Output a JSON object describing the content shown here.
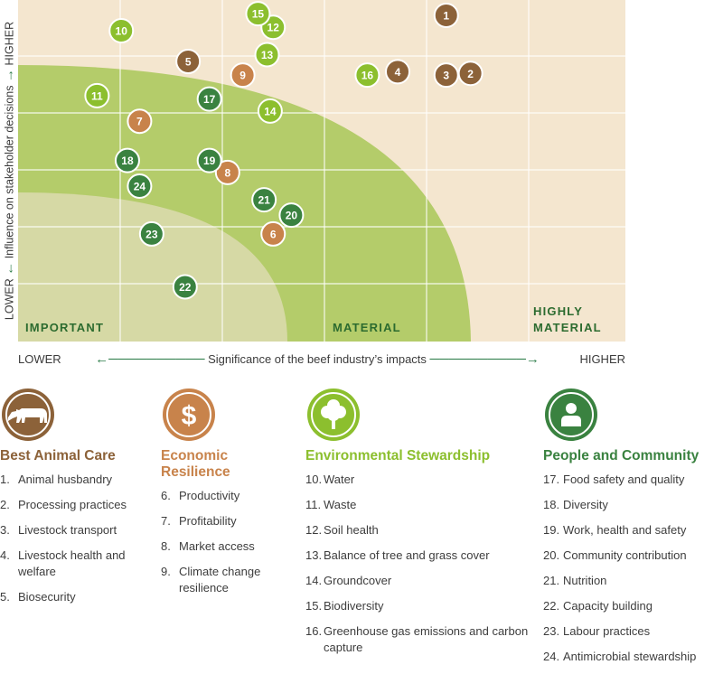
{
  "chart_data": {
    "type": "scatter",
    "xlabel": "Significance of the beef industry’s impacts",
    "ylabel": "Influence on stakeholder decisions",
    "x_axis": {
      "low_label": "LOWER",
      "high_label": "HIGHER"
    },
    "y_axis": {
      "low_label": "LOWER",
      "high_label": "HIGHER"
    },
    "xlim": [
      0,
      10
    ],
    "ylim": [
      0,
      10
    ],
    "grid": true,
    "zones": [
      {
        "name": "IMPORTANT",
        "color": "#d6d9a5"
      },
      {
        "name": "MATERIAL",
        "color": "#b4cc6a"
      },
      {
        "name": "HIGHLY MATERIAL",
        "color": "#f4e6cf"
      }
    ],
    "points": [
      {
        "id": "1",
        "x": 7.05,
        "y": 9.55,
        "category": "best-animal-care"
      },
      {
        "id": "2",
        "x": 7.45,
        "y": 7.85,
        "category": "best-animal-care"
      },
      {
        "id": "3",
        "x": 7.05,
        "y": 7.8,
        "category": "best-animal-care"
      },
      {
        "id": "4",
        "x": 6.25,
        "y": 7.9,
        "category": "best-animal-care"
      },
      {
        "id": "5",
        "x": 2.8,
        "y": 8.2,
        "category": "best-animal-care"
      },
      {
        "id": "6",
        "x": 4.2,
        "y": 3.15,
        "category": "economic-resilience"
      },
      {
        "id": "7",
        "x": 2.0,
        "y": 6.45,
        "category": "economic-resilience"
      },
      {
        "id": "8",
        "x": 3.45,
        "y": 4.95,
        "category": "economic-resilience"
      },
      {
        "id": "9",
        "x": 3.7,
        "y": 7.8,
        "category": "economic-resilience"
      },
      {
        "id": "10",
        "x": 1.7,
        "y": 9.1,
        "category": "environmental-stewardship"
      },
      {
        "id": "11",
        "x": 1.3,
        "y": 7.2,
        "category": "environmental-stewardship"
      },
      {
        "id": "12",
        "x": 4.2,
        "y": 9.2,
        "category": "environmental-stewardship"
      },
      {
        "id": "13",
        "x": 4.1,
        "y": 8.4,
        "category": "environmental-stewardship"
      },
      {
        "id": "14",
        "x": 4.15,
        "y": 6.75,
        "category": "environmental-stewardship"
      },
      {
        "id": "15",
        "x": 3.95,
        "y": 9.6,
        "category": "environmental-stewardship"
      },
      {
        "id": "16",
        "x": 5.75,
        "y": 7.8,
        "category": "environmental-stewardship"
      },
      {
        "id": "17",
        "x": 3.15,
        "y": 7.1,
        "category": "people-and-community"
      },
      {
        "id": "18",
        "x": 1.8,
        "y": 5.3,
        "category": "people-and-community"
      },
      {
        "id": "19",
        "x": 3.15,
        "y": 5.3,
        "category": "people-and-community"
      },
      {
        "id": "20",
        "x": 4.5,
        "y": 3.7,
        "category": "people-and-community"
      },
      {
        "id": "21",
        "x": 4.05,
        "y": 4.15,
        "category": "people-and-community"
      },
      {
        "id": "22",
        "x": 2.75,
        "y": 1.6,
        "category": "people-and-community"
      },
      {
        "id": "23",
        "x": 2.2,
        "y": 3.15,
        "category": "people-and-community"
      },
      {
        "id": "24",
        "x": 2.0,
        "y": 4.55,
        "category": "people-and-community"
      }
    ]
  },
  "categories": [
    {
      "key": "best-animal-care",
      "title": "Best Animal Care",
      "color": "#8c6239",
      "icon": "cow-icon",
      "items": [
        {
          "num": "1.",
          "label": "Animal husbandry"
        },
        {
          "num": "2.",
          "label": "Processing practices"
        },
        {
          "num": "3.",
          "label": "Livestock transport"
        },
        {
          "num": "4.",
          "label": "Livestock health and welfare"
        },
        {
          "num": "5.",
          "label": "Biosecurity"
        }
      ]
    },
    {
      "key": "economic-resilience",
      "title": "Economic Resilience",
      "color": "#c8834b",
      "icon": "dollar-icon",
      "items": [
        {
          "num": "6.",
          "label": "Productivity"
        },
        {
          "num": "7.",
          "label": "Profitability"
        },
        {
          "num": "8.",
          "label": "Market access"
        },
        {
          "num": "9.",
          "label": "Climate change resilience"
        }
      ]
    },
    {
      "key": "environmental-stewardship",
      "title": "Environmental Stewardship",
      "color": "#8cbf2e",
      "icon": "tree-icon",
      "items": [
        {
          "num": "10.",
          "label": "Water"
        },
        {
          "num": "11.",
          "label": "Waste"
        },
        {
          "num": "12.",
          "label": "Soil health"
        },
        {
          "num": "13.",
          "label": "Balance of tree and grass cover"
        },
        {
          "num": "14.",
          "label": "Groundcover"
        },
        {
          "num": "15.",
          "label": "Biodiversity"
        },
        {
          "num": "16.",
          "label": "Greenhouse gas emissions and carbon capture"
        }
      ]
    },
    {
      "key": "people-and-community",
      "title": "People and Community",
      "color": "#3a8240",
      "icon": "person-icon",
      "items": [
        {
          "num": "17.",
          "label": "Food safety and quality"
        },
        {
          "num": "18.",
          "label": "Diversity"
        },
        {
          "num": "19.",
          "label": "Work, health and safety"
        },
        {
          "num": "20.",
          "label": "Community contribution"
        },
        {
          "num": "21.",
          "label": "Nutrition"
        },
        {
          "num": "22.",
          "label": "Capacity building"
        },
        {
          "num": "23.",
          "label": "Labour practices"
        },
        {
          "num": "24.",
          "label": "Antimicrobial stewardship"
        }
      ]
    }
  ]
}
